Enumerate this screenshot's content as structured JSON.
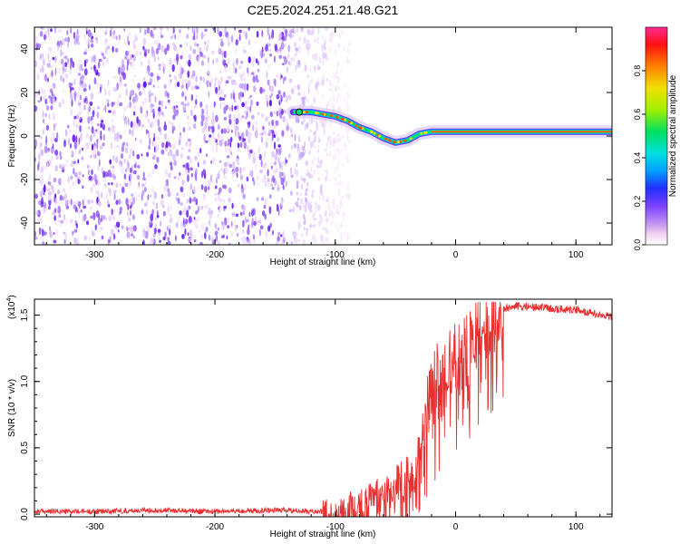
{
  "title": "C2E5.2024.251.21.48.G21",
  "colors": {
    "signal": "#e83030",
    "noise": "#7a2cf0",
    "colorbar": [
      "#ffffff",
      "#f4d8f4",
      "#b070f0",
      "#5500ff",
      "#0066ff",
      "#00d5ff",
      "#00e060",
      "#d8f000",
      "#ff9000",
      "#ff0000",
      "#ff3090"
    ]
  },
  "chart_data": [
    {
      "type": "heatmap",
      "title": "C2E5.2024.251.21.48.G21",
      "xlabel": "Height of straight line (km)",
      "ylabel": "Frequency (Hz)",
      "xlim": [
        -350,
        130
      ],
      "ylim": [
        -50,
        50
      ],
      "x_ticks": [
        -300,
        -200,
        -100,
        0,
        100
      ],
      "y_ticks": [
        -40,
        -20,
        0,
        20,
        40
      ],
      "colorbar": {
        "label": "Normalized spectral amplitude",
        "range": [
          0,
          1
        ],
        "ticks": [
          "0.0",
          "0.2",
          "0.4",
          "0.6",
          "0.8"
        ]
      },
      "noise_region": {
        "x_range": [
          -350,
          -100
        ],
        "frequency_range": [
          -50,
          50
        ]
      },
      "signal_trace": {
        "x": [
          -130,
          -120,
          -110,
          -100,
          -90,
          -80,
          -70,
          -60,
          -50,
          -40,
          -30,
          -20,
          -10,
          0,
          20,
          50,
          80,
          110,
          130
        ],
        "frequency": [
          11,
          11,
          10,
          9,
          7,
          4,
          2,
          -1,
          -3,
          -2,
          1,
          2,
          2,
          2,
          2,
          2,
          2,
          2,
          2
        ]
      }
    },
    {
      "type": "line",
      "xlabel": "Height of straight line (km)",
      "ylabel": "SNR (10 * v/v)",
      "y_multiplier": "(x10",
      "y_multiplier_exp": "4",
      "y_multiplier_close": ")",
      "xlim": [
        -350,
        130
      ],
      "ylim": [
        -0.02,
        1.62
      ],
      "x_ticks": [
        -300,
        -200,
        -100,
        0,
        100
      ],
      "y_ticks": [
        "0.0",
        "0.5",
        "1.0",
        "1.5"
      ],
      "series": [
        {
          "x": [
            -350,
            -300,
            -250,
            -200,
            -150,
            -120,
            -100,
            -80,
            -60,
            -45,
            -35,
            -28,
            -22,
            -15,
            -5,
            0,
            10,
            20,
            30,
            40,
            50,
            60,
            80,
            100,
            120,
            130
          ],
          "y": [
            0.02,
            0.02,
            0.03,
            0.02,
            0.03,
            0.02,
            0.02,
            0.06,
            0.15,
            0.25,
            0.3,
            0.55,
            0.85,
            1.0,
            1.1,
            1.15,
            1.25,
            1.42,
            1.5,
            1.55,
            1.57,
            1.56,
            1.55,
            1.54,
            1.5,
            1.49
          ]
        }
      ]
    }
  ]
}
